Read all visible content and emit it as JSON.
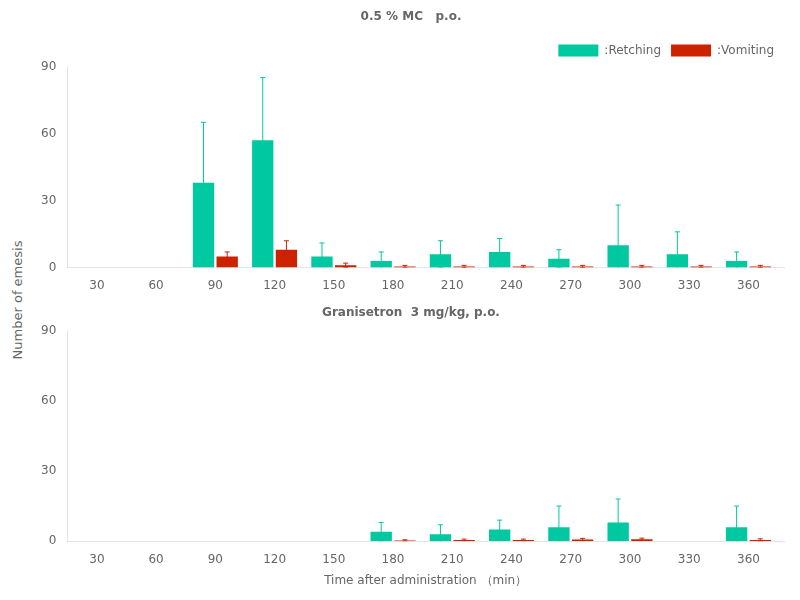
{
  "chart_data": [
    {
      "type": "bar",
      "title": "0.5 % MC   p.o.",
      "ylabel": "Number of emesis",
      "x": [
        30,
        60,
        90,
        120,
        150,
        180,
        210,
        240,
        270,
        300,
        330,
        360
      ],
      "xlim": [
        15,
        378
      ],
      "xticks": [
        30,
        60,
        90,
        120,
        150,
        180,
        210,
        240,
        270,
        300,
        330,
        360
      ],
      "ylim": [
        0,
        90
      ],
      "yticks": [
        0,
        30,
        60,
        90
      ],
      "grid": false,
      "legend": "upper right",
      "series": [
        {
          "name": ":Retching",
          "color": "#00C8A0",
          "values": [
            0,
            0,
            38,
            57,
            5,
            3,
            6,
            7,
            4,
            10,
            6,
            3
          ],
          "errors": [
            0,
            0,
            27,
            28,
            6,
            4,
            6,
            6,
            4,
            18,
            10,
            4
          ]
        },
        {
          "name": ":Vomiting",
          "color": "#CC2200",
          "values": [
            0,
            0,
            5,
            8,
            1,
            0.5,
            0.5,
            0.5,
            0.5,
            0.5,
            0.5,
            0.5
          ],
          "errors": [
            0,
            0,
            2,
            4,
            1,
            0.5,
            0.5,
            0.5,
            0.5,
            0.5,
            0.5,
            0.5
          ]
        }
      ]
    },
    {
      "type": "bar",
      "title": "Granisetron  3 mg/kg, p.o.",
      "xlabel": "Time after administration （min）",
      "x": [
        30,
        60,
        90,
        120,
        150,
        180,
        210,
        240,
        270,
        300,
        330,
        360
      ],
      "xlim": [
        15,
        378
      ],
      "xticks": [
        30,
        60,
        90,
        120,
        150,
        180,
        210,
        240,
        270,
        300,
        330,
        360
      ],
      "ylim": [
        0,
        90
      ],
      "yticks": [
        0,
        30,
        60,
        90
      ],
      "grid": false,
      "legend": false,
      "series": [
        {
          "name": ":Retching",
          "color": "#00C8A0",
          "values": [
            0,
            0,
            0,
            0,
            0,
            4,
            3,
            5,
            6,
            8,
            0,
            6
          ],
          "errors": [
            0,
            0,
            0,
            0,
            0,
            4,
            4,
            4,
            9,
            10,
            0,
            9
          ]
        },
        {
          "name": ":Vomiting",
          "color": "#CC2200",
          "values": [
            0,
            0,
            0,
            0,
            0,
            0.3,
            0.5,
            0.5,
            0.7,
            0.8,
            0,
            0.5
          ],
          "errors": [
            0,
            0,
            0,
            0,
            0,
            0.3,
            0.4,
            0.4,
            0.5,
            0.5,
            0,
            0.5
          ]
        }
      ]
    }
  ]
}
